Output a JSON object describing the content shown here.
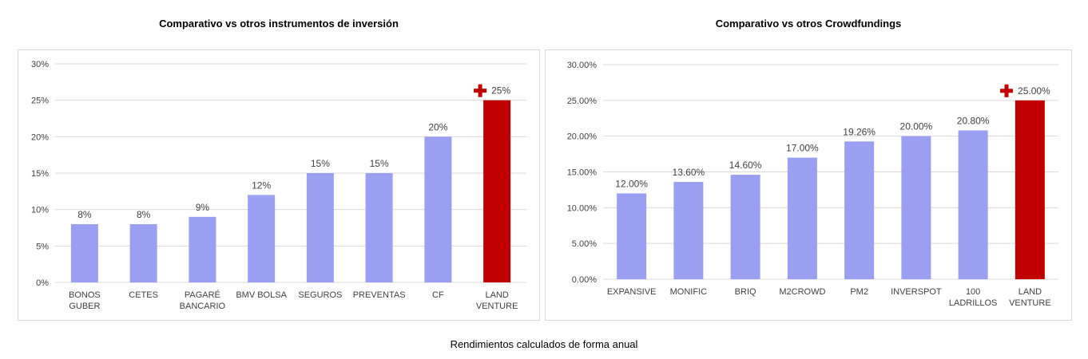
{
  "footer_note": "Rendimientos calculados de forma anual",
  "colors": {
    "bar": "#9b9ff2",
    "highlight": "#c00000",
    "grid": "#d9d9d9",
    "plus_icon": "#c00000"
  },
  "chart_data": [
    {
      "type": "bar",
      "title": "Comparativo vs otros instrumentos de inversión",
      "categories": [
        [
          "BONOS",
          "GUBER"
        ],
        [
          "CETES"
        ],
        [
          "PAGARÉ",
          "BANCARIO"
        ],
        [
          "BMV BOLSA"
        ],
        [
          "SEGUROS"
        ],
        [
          "PREVENTAS"
        ],
        [
          "CF"
        ],
        [
          "LAND",
          "VENTURE"
        ]
      ],
      "values": [
        8,
        8,
        9,
        12,
        15,
        15,
        20,
        25
      ],
      "data_labels": [
        "8%",
        "8%",
        "9%",
        "12%",
        "15%",
        "15%",
        "20%",
        "25%"
      ],
      "highlight_index": 7,
      "highlight_icon": "plus-icon",
      "ylim": [
        0,
        30
      ],
      "yticks": [
        "0%",
        "5%",
        "10%",
        "15%",
        "20%",
        "25%",
        "30%"
      ],
      "grid": true,
      "legend": "none"
    },
    {
      "type": "bar",
      "title": "Comparativo vs otros Crowdfundings",
      "categories": [
        [
          "EXPANSIVE"
        ],
        [
          "MONIFIC"
        ],
        [
          "BRIQ"
        ],
        [
          "M2CROWD"
        ],
        [
          "PM2"
        ],
        [
          "INVERSPOT"
        ],
        [
          "100",
          "LADRILLOS"
        ],
        [
          "LAND",
          "VENTURE"
        ]
      ],
      "values": [
        12.0,
        13.6,
        14.6,
        17.0,
        19.26,
        20.0,
        20.8,
        25.0
      ],
      "data_labels": [
        "12.00%",
        "13.60%",
        "14.60%",
        "17.00%",
        "19.26%",
        "20.00%",
        "20.80%",
        "25.00%"
      ],
      "highlight_index": 7,
      "highlight_icon": "plus-icon",
      "ylim": [
        0,
        30
      ],
      "yticks": [
        "0.00%",
        "5.00%",
        "10.00%",
        "15.00%",
        "20.00%",
        "25.00%",
        "30.00%"
      ],
      "grid": true,
      "legend": "none"
    }
  ]
}
